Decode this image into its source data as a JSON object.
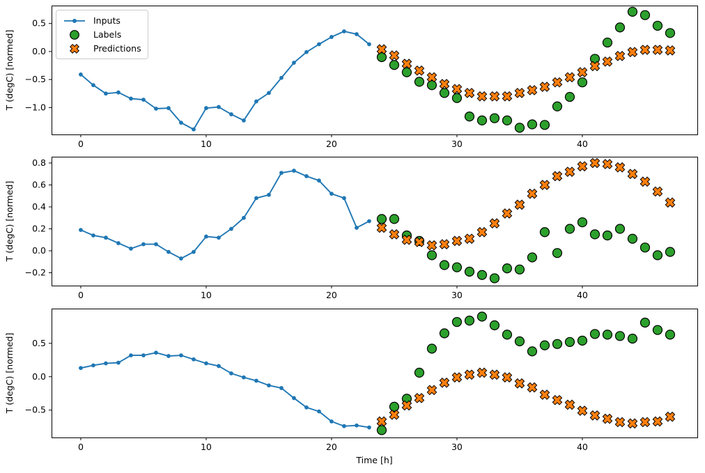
{
  "colors": {
    "inputs": "#1f77b4",
    "labels": "#2ca02c",
    "predictions": "#ff7f0e",
    "marker_edge": "#000000",
    "spine": "#000000",
    "text": "#000000",
    "legend_border": "#cccccc"
  },
  "legend": {
    "items": [
      {
        "icon": "line-dot-marker",
        "label": "Inputs"
      },
      {
        "icon": "circle-marker",
        "label": "Labels"
      },
      {
        "icon": "x-marker",
        "label": "Predictions"
      }
    ]
  },
  "chart_data": {
    "type": "line+scatter",
    "title": "",
    "xlabel": "Time [h]",
    "legend_position": "upper left",
    "grid": false,
    "xlim": [
      -2.33,
      49.17
    ],
    "xticks": [
      {
        "v": 0,
        "label": "0"
      },
      {
        "v": 10,
        "label": "10"
      },
      {
        "v": 20,
        "label": "20"
      },
      {
        "v": 30,
        "label": "30"
      },
      {
        "v": 40,
        "label": "40"
      }
    ],
    "subplots": [
      {
        "ylabel": "T (degC) [normed]",
        "ylim": [
          -1.48,
          0.82
        ],
        "yticks": [
          {
            "v": 0.5,
            "label": "0.5"
          },
          {
            "v": 0.0,
            "label": "0.0"
          },
          {
            "v": -0.5,
            "label": "−0.5"
          },
          {
            "v": -1.0,
            "label": "−1.0"
          }
        ],
        "series": {
          "inputs": {
            "x": [
              0,
              1,
              2,
              3,
              4,
              5,
              6,
              7,
              8,
              9,
              10,
              11,
              12,
              13,
              14,
              15,
              16,
              17,
              18,
              19,
              20,
              21,
              22,
              23
            ],
            "y": [
              -0.41,
              -0.6,
              -0.75,
              -0.73,
              -0.84,
              -0.86,
              -1.02,
              -1.01,
              -1.27,
              -1.39,
              -1.01,
              -0.99,
              -1.12,
              -1.23,
              -0.89,
              -0.74,
              -0.47,
              -0.2,
              -0.01,
              0.13,
              0.26,
              0.36,
              0.31,
              0.13
            ]
          },
          "labels": {
            "x": [
              24,
              25,
              26,
              27,
              28,
              29,
              30,
              31,
              32,
              33,
              34,
              35,
              36,
              37,
              38,
              39,
              40,
              41,
              42,
              43,
              44,
              45,
              46,
              47
            ],
            "y": [
              -0.1,
              -0.24,
              -0.37,
              -0.54,
              -0.6,
              -0.74,
              -0.83,
              -1.16,
              -1.23,
              -1.19,
              -1.23,
              -1.36,
              -1.3,
              -1.31,
              -0.98,
              -0.81,
              -0.55,
              -0.13,
              0.16,
              0.43,
              0.71,
              0.65,
              0.46,
              0.33
            ]
          },
          "predictions": {
            "x": [
              24,
              25,
              26,
              27,
              28,
              29,
              30,
              31,
              32,
              33,
              34,
              35,
              36,
              37,
              38,
              39,
              40,
              41,
              42,
              43,
              44,
              45,
              46,
              47
            ],
            "y": [
              0.04,
              -0.07,
              -0.22,
              -0.34,
              -0.46,
              -0.58,
              -0.67,
              -0.74,
              -0.8,
              -0.8,
              -0.8,
              -0.74,
              -0.69,
              -0.63,
              -0.55,
              -0.46,
              -0.37,
              -0.26,
              -0.18,
              -0.08,
              -0.01,
              0.03,
              0.03,
              0.02
            ]
          }
        }
      },
      {
        "ylabel": "T (degC) [normed]",
        "ylim": [
          -0.317,
          0.857
        ],
        "yticks": [
          {
            "v": 0.8,
            "label": "0.8"
          },
          {
            "v": 0.6,
            "label": "0.6"
          },
          {
            "v": 0.4,
            "label": "0.4"
          },
          {
            "v": 0.2,
            "label": "0.2"
          },
          {
            "v": 0.0,
            "label": "0.0"
          },
          {
            "v": -0.2,
            "label": "−0.2"
          }
        ],
        "series": {
          "inputs": {
            "x": [
              0,
              1,
              2,
              3,
              4,
              5,
              6,
              7,
              8,
              9,
              10,
              11,
              12,
              13,
              14,
              15,
              16,
              17,
              18,
              19,
              20,
              21,
              22,
              23
            ],
            "y": [
              0.19,
              0.14,
              0.12,
              0.07,
              0.02,
              0.06,
              0.06,
              -0.01,
              -0.07,
              -0.01,
              0.13,
              0.12,
              0.2,
              0.3,
              0.48,
              0.51,
              0.71,
              0.73,
              0.68,
              0.64,
              0.52,
              0.48,
              0.21,
              0.27
            ]
          },
          "labels": {
            "x": [
              24,
              25,
              26,
              27,
              28,
              29,
              30,
              31,
              32,
              33,
              34,
              35,
              36,
              37,
              38,
              39,
              40,
              41,
              42,
              43,
              44,
              45,
              46,
              47
            ],
            "y": [
              0.29,
              0.29,
              0.14,
              0.09,
              -0.04,
              -0.13,
              -0.15,
              -0.19,
              -0.22,
              -0.25,
              -0.16,
              -0.17,
              -0.06,
              0.17,
              -0.02,
              0.2,
              0.26,
              0.15,
              0.14,
              0.2,
              0.11,
              0.03,
              -0.04,
              -0.01
            ]
          },
          "predictions": {
            "x": [
              24,
              25,
              26,
              27,
              28,
              29,
              30,
              31,
              32,
              33,
              34,
              35,
              36,
              37,
              38,
              39,
              40,
              41,
              42,
              43,
              44,
              45,
              46,
              47
            ],
            "y": [
              0.21,
              0.15,
              0.1,
              0.08,
              0.05,
              0.06,
              0.09,
              0.11,
              0.17,
              0.25,
              0.34,
              0.42,
              0.52,
              0.6,
              0.68,
              0.72,
              0.77,
              0.8,
              0.79,
              0.76,
              0.7,
              0.63,
              0.54,
              0.44
            ]
          }
        }
      },
      {
        "ylabel": "T (degC) [normed]",
        "ylim": [
          -0.91,
          1.02
        ],
        "yticks": [
          {
            "v": 0.5,
            "label": "0.5"
          },
          {
            "v": 0.0,
            "label": "0.0"
          },
          {
            "v": -0.5,
            "label": "−0.5"
          }
        ],
        "series": {
          "inputs": {
            "x": [
              0,
              1,
              2,
              3,
              4,
              5,
              6,
              7,
              8,
              9,
              10,
              11,
              12,
              13,
              14,
              15,
              16,
              17,
              18,
              19,
              20,
              21,
              22,
              23
            ],
            "y": [
              0.13,
              0.17,
              0.2,
              0.21,
              0.32,
              0.32,
              0.36,
              0.31,
              0.32,
              0.26,
              0.2,
              0.16,
              0.05,
              -0.01,
              -0.06,
              -0.13,
              -0.17,
              -0.32,
              -0.46,
              -0.52,
              -0.67,
              -0.74,
              -0.73,
              -0.76
            ]
          },
          "labels": {
            "x": [
              24,
              25,
              26,
              27,
              28,
              29,
              30,
              31,
              32,
              33,
              34,
              35,
              36,
              37,
              38,
              39,
              40,
              41,
              42,
              43,
              44,
              45,
              46,
              47
            ],
            "y": [
              -0.8,
              -0.45,
              -0.33,
              0.06,
              0.42,
              0.65,
              0.82,
              0.84,
              0.9,
              0.77,
              0.63,
              0.53,
              0.38,
              0.47,
              0.49,
              0.52,
              0.54,
              0.64,
              0.63,
              0.61,
              0.57,
              0.81,
              0.7,
              0.63
            ]
          },
          "predictions": {
            "x": [
              24,
              25,
              26,
              27,
              28,
              29,
              30,
              31,
              32,
              33,
              34,
              35,
              36,
              37,
              38,
              39,
              40,
              41,
              42,
              43,
              44,
              45,
              46,
              47
            ],
            "y": [
              -0.67,
              -0.57,
              -0.43,
              -0.32,
              -0.2,
              -0.09,
              -0.01,
              0.03,
              0.06,
              0.03,
              -0.01,
              -0.1,
              -0.16,
              -0.27,
              -0.35,
              -0.42,
              -0.51,
              -0.58,
              -0.63,
              -0.68,
              -0.7,
              -0.68,
              -0.67,
              -0.6
            ]
          }
        }
      }
    ]
  }
}
